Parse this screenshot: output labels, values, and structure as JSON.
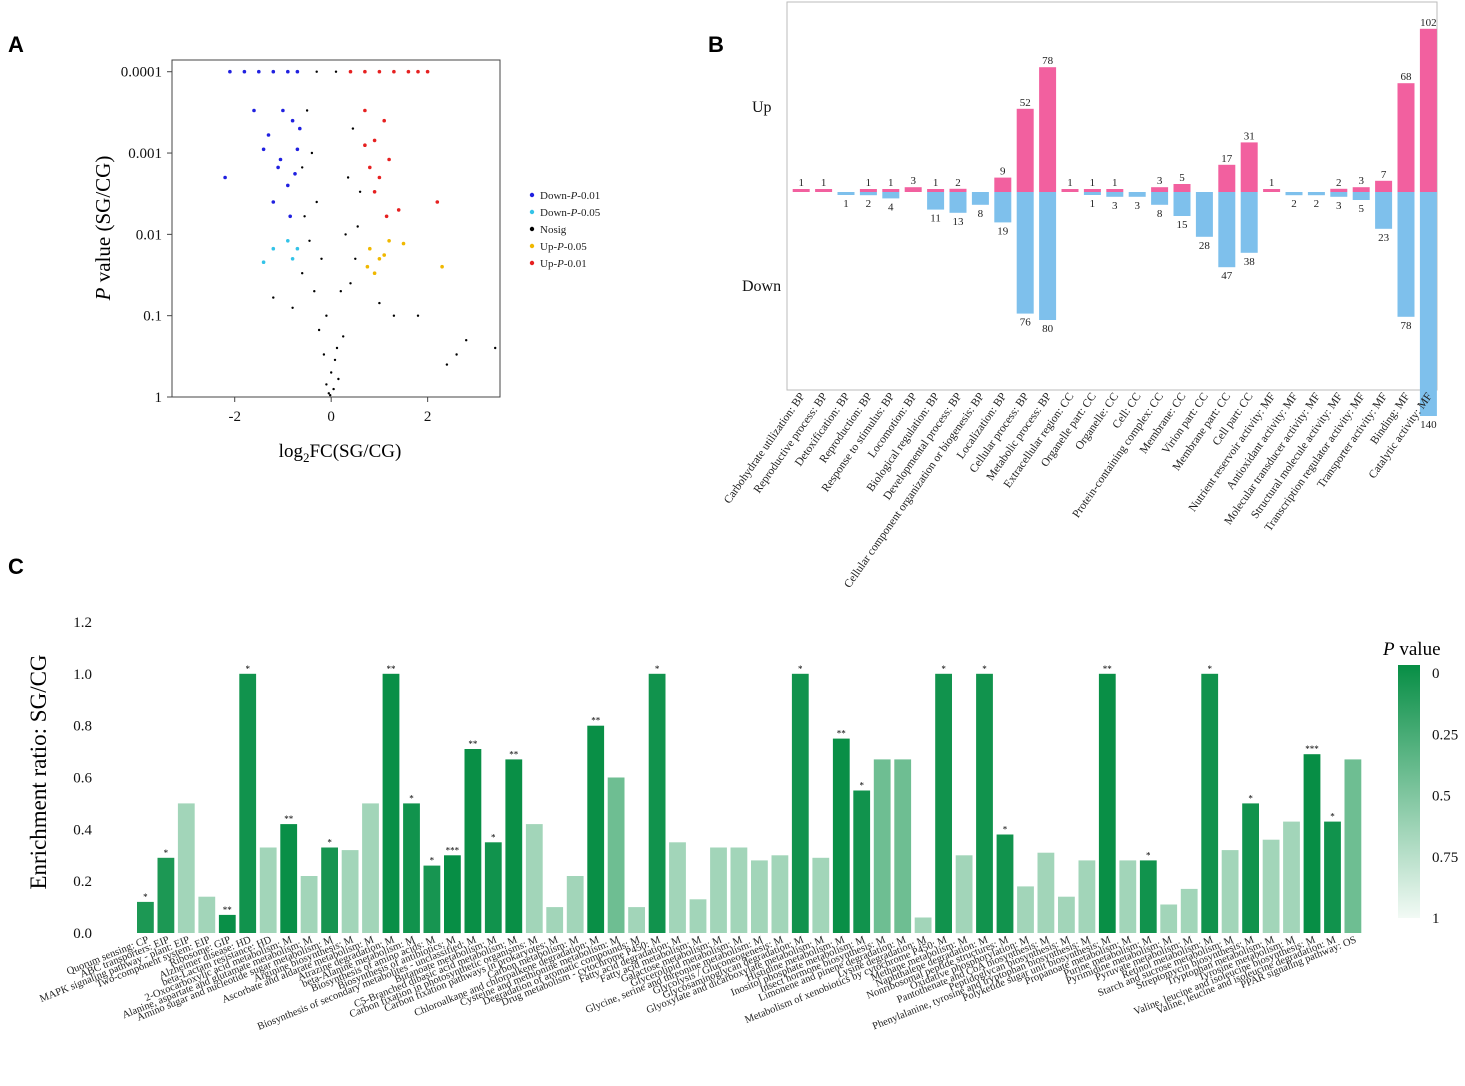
{
  "panels": {
    "a": "A",
    "b": "B",
    "c": "C"
  },
  "chart_data": [
    {
      "panel": "A",
      "type": "scatter",
      "title": "",
      "xlabel_base": "log",
      "xlabel_sub": "2",
      "xlabel_rest": "FC(SG/CG)",
      "ylabel_italic": "P",
      "ylabel_rest": " value (SG/CG)",
      "x_ticks": [
        "-2",
        "0",
        "2"
      ],
      "x_tick_values": [
        -2,
        0,
        2
      ],
      "xlim": [
        -3.3,
        3.5
      ],
      "y_ticks": [
        "0.0001",
        "0.001",
        "0.01",
        "0.1",
        "1"
      ],
      "y_tick_values": [
        0.0001,
        0.001,
        0.01,
        0.1,
        1
      ],
      "ylim_log": [
        9e-05,
        1
      ],
      "legend": [
        {
          "base": "Down-",
          "ital": "P",
          "rest": "-0.01",
          "color": "#2020e0"
        },
        {
          "base": "Down-",
          "ital": "P",
          "rest": "-0.05",
          "color": "#33c3e8"
        },
        {
          "base": "Nosig",
          "ital": "",
          "rest": "",
          "color": "#000000"
        },
        {
          "base": "Up-",
          "ital": "P",
          "rest": "-0.05",
          "color": "#f0b800"
        },
        {
          "base": "Up-",
          "ital": "P",
          "rest": "-0.01",
          "color": "#e62020"
        }
      ],
      "series": [
        {
          "name": "Down-P-0.01",
          "color": "#2020e0",
          "points": [
            [
              -2.1,
              0.0001
            ],
            [
              -1.8,
              0.0001
            ],
            [
              -1.5,
              0.0001
            ],
            [
              -1.2,
              0.0001
            ],
            [
              -0.9,
              0.0001
            ],
            [
              -0.7,
              0.0001
            ],
            [
              -2.2,
              0.002
            ],
            [
              -1.6,
              0.0003
            ],
            [
              -1.3,
              0.0006
            ],
            [
              -1.0,
              0.0003
            ],
            [
              -0.8,
              0.0004
            ],
            [
              -0.7,
              0.0009
            ],
            [
              -1.1,
              0.0015
            ],
            [
              -0.9,
              0.0025
            ],
            [
              -0.75,
              0.0018
            ],
            [
              -1.4,
              0.0009
            ],
            [
              -1.2,
              0.004
            ],
            [
              -0.85,
              0.006
            ],
            [
              -1.05,
              0.0012
            ],
            [
              -0.65,
              0.0005
            ]
          ]
        },
        {
          "name": "Down-P-0.05",
          "color": "#33c3e8",
          "points": [
            [
              -1.4,
              0.022
            ],
            [
              -1.2,
              0.015
            ],
            [
              -0.9,
              0.012
            ],
            [
              -0.8,
              0.02
            ],
            [
              -0.7,
              0.015
            ]
          ]
        },
        {
          "name": "Nosig",
          "color": "#000000",
          "points": [
            [
              -0.3,
              0.0001
            ],
            [
              0.1,
              0.0001
            ],
            [
              -0.5,
              0.0003
            ],
            [
              -0.4,
              0.001
            ],
            [
              -0.3,
              0.004
            ],
            [
              -0.2,
              0.02
            ],
            [
              -0.1,
              0.1
            ],
            [
              0.0,
              0.5
            ],
            [
              0.05,
              0.8
            ],
            [
              -0.05,
              0.9
            ],
            [
              0.2,
              0.05
            ],
            [
              0.3,
              0.01
            ],
            [
              0.35,
              0.002
            ],
            [
              0.45,
              0.0005
            ],
            [
              -0.6,
              0.03
            ],
            [
              -0.8,
              0.08
            ],
            [
              -1.2,
              0.06
            ],
            [
              1.0,
              0.07
            ],
            [
              1.3,
              0.1
            ],
            [
              1.8,
              0.1
            ],
            [
              2.4,
              0.4
            ],
            [
              2.8,
              0.2
            ],
            [
              3.4,
              0.25
            ],
            [
              2.6,
              0.3
            ],
            [
              -0.15,
              0.3
            ],
            [
              0.12,
              0.25
            ],
            [
              -0.25,
              0.15
            ],
            [
              0.25,
              0.18
            ],
            [
              -0.35,
              0.05
            ],
            [
              0.4,
              0.04
            ],
            [
              -0.45,
              0.012
            ],
            [
              0.5,
              0.02
            ],
            [
              -0.55,
              0.006
            ],
            [
              0.55,
              0.008
            ],
            [
              0.6,
              0.003
            ],
            [
              -0.6,
              0.0015
            ],
            [
              0.15,
              0.6
            ],
            [
              -0.1,
              0.7
            ],
            [
              0.08,
              0.35
            ],
            [
              -0.02,
              0.95
            ]
          ]
        },
        {
          "name": "Up-P-0.05",
          "color": "#f0b800",
          "points": [
            [
              0.8,
              0.015
            ],
            [
              1.0,
              0.02
            ],
            [
              1.2,
              0.012
            ],
            [
              0.9,
              0.03
            ],
            [
              1.5,
              0.013
            ],
            [
              2.3,
              0.025
            ],
            [
              0.75,
              0.025
            ],
            [
              1.1,
              0.018
            ]
          ]
        },
        {
          "name": "Up-P-0.01",
          "color": "#e62020",
          "points": [
            [
              0.4,
              0.0001
            ],
            [
              0.7,
              0.0001
            ],
            [
              1.0,
              0.0001
            ],
            [
              1.3,
              0.0001
            ],
            [
              1.6,
              0.0001
            ],
            [
              1.8,
              0.0001
            ],
            [
              2.0,
              0.0001
            ],
            [
              0.7,
              0.0003
            ],
            [
              0.9,
              0.0007
            ],
            [
              1.1,
              0.0004
            ],
            [
              0.8,
              0.0015
            ],
            [
              1.0,
              0.002
            ],
            [
              1.2,
              0.0012
            ],
            [
              0.9,
              0.003
            ],
            [
              1.4,
              0.005
            ],
            [
              2.2,
              0.004
            ],
            [
              0.7,
              0.0008
            ],
            [
              1.15,
              0.006
            ]
          ]
        }
      ]
    },
    {
      "panel": "B",
      "type": "bar",
      "title": "",
      "ylabel_up": "Up",
      "ylabel_down": "Down",
      "categories": [
        "Carbohydrate utilization: BP",
        "Reproductive process: BP",
        "Detoxification: BP",
        "Reproduction: BP",
        "Response to stimulus: BP",
        "Locomotion: BP",
        "Biological regulation: BP",
        "Developmental process: BP",
        "Cellular component organization or biogenesis: BP",
        "Localization: BP",
        "Cellular process: BP",
        "Metabolic process: BP",
        "Extracellular region: CC",
        "Organelle part: CC",
        "Organelle: CC",
        "Cell: CC",
        "Protein-containing complex: CC",
        "Membrane: CC",
        "Virion part: CC",
        "Membrane part: CC",
        "Cell part: CC",
        "Nutrient reservoir activity: MF",
        "Antioxidant activity: MF",
        "Molecular transducer activity: MF",
        "Structural molecule activity: MF",
        "Transcription regulator activity: MF",
        "Transporter activity: MF",
        "Binding: MF",
        "Catalytic activity: MF"
      ],
      "series": [
        {
          "name": "Up",
          "color": "#f2609f",
          "values": [
            1,
            1,
            0,
            1,
            1,
            3,
            1,
            2,
            0,
            9,
            52,
            78,
            1,
            1,
            1,
            0,
            3,
            5,
            0,
            17,
            31,
            1,
            0,
            0,
            2,
            3,
            7,
            68,
            102
          ]
        },
        {
          "name": "Down",
          "color": "#7ec0ec",
          "values": [
            0,
            0,
            1,
            2,
            4,
            0,
            11,
            13,
            8,
            19,
            76,
            80,
            0,
            1,
            3,
            3,
            8,
            15,
            28,
            47,
            38,
            0,
            2,
            2,
            3,
            5,
            23,
            78,
            140
          ]
        }
      ]
    },
    {
      "panel": "C",
      "type": "bar",
      "title": "",
      "ylabel": "Enrichment ratio: SG/CG",
      "ylim": [
        0,
        1.2
      ],
      "y_ticks": [
        "0.0",
        "0.2",
        "0.4",
        "0.6",
        "0.8",
        "1.0",
        "1.2"
      ],
      "y_tick_values": [
        0,
        0.2,
        0.4,
        0.6,
        0.8,
        1.0,
        1.2
      ],
      "colorbar_title_italic": "P",
      "colorbar_title_rest": " value",
      "colorbar_ticks": [
        "0",
        "0.25",
        "0.5",
        "0.75",
        "1"
      ],
      "colorbar_values": [
        0,
        0.25,
        0.5,
        0.75,
        1
      ],
      "categories": [
        "Quorum sensing: CP",
        "ABC transporters: EIP",
        "MAPK signaling pathway - plant: EIP",
        "Two-component system: EIP",
        "Ribosome: GIP",
        "Alzheimer disease: HD",
        "beta-Lactam resistance: HD",
        "2-Oxocarboxylic acid metabolism: M",
        "Alanine, aspartate and glutamate metabolism: M",
        "Amino sugar and nucleotide sugar metabolism: M",
        "Arginine biosynthesis: M",
        "Ascorbate and aldarate metabolism: M",
        "Atrazine degradation: M",
        "beta-Alanine metabolism: M",
        "Biosynthesis of amino acids: M",
        "Biosynthesis of antibiotics: M",
        "Biosynthesis of secondary metabolites - unclassified: M",
        "Butanoate metabolism: M",
        "C5-Branched dibasic acid metabolism: M",
        "Carbon fixation in photosynthetic organisms: M",
        "Carbon fixation pathways in prokaryotes: M",
        "Carbon metabolism: M",
        "Chloroalkane and chloroalkene degradation: M",
        "Cysteine and methionine metabolism: M",
        "Degradation of aromatic compounds: M",
        "Drug metabolism - cytochrome P450: M",
        "Fatty acid degradation: M",
        "Fatty acid metabolism: M",
        "Galactose metabolism: M",
        "Glycerolipid metabolism: M",
        "Glycine, serine and threonine metabolism: M",
        "Glycolysis / Gluconeogenesis: M",
        "Glycosaminoglycan degradation: M",
        "Glyoxylate and dicarboxylate metabolism: M",
        "Histidine metabolism: M",
        "Inositol phosphate metabolism: M",
        "Insect hormone biosynthesis: M",
        "Limonene and pinene degradation: M",
        "Lysine degradation: M",
        "Metabolism of xenobiotics by cytochrome P450: M",
        "Methane metabolism: M",
        "Naphthalene degradation: M",
        "Nonribosomal peptide structures: M",
        "Oxidative phosphorylation: M",
        "Pantothenate and CoA biosynthesis: M",
        "Peptidoglycan biosynthesis: M",
        "Phenylalanine, tyrosine and tryptophan biosynthesis: M",
        "Polyketide sugar unit biosynthesis: M",
        "Propanoate metabolism: M",
        "Purine metabolism: M",
        "Pyrimidine metabolism: M",
        "Pyruvate metabolism: M",
        "Retinol metabolism: M",
        "Starch and sucrose metabolism: M",
        "Streptomycin biosynthesis: M",
        "Tryptophan metabolism: M",
        "Tyrosine metabolism: M",
        "Valine, leucine and isoleucine biosynthesis: M",
        "Valine, leucine and isoleucine degradation: M",
        "PPAR signaling pathway: OS"
      ],
      "values": [
        0.12,
        0.29,
        0.5,
        0.14,
        0.07,
        1.0,
        0.33,
        0.42,
        0.22,
        0.33,
        0.32,
        0.5,
        1.0,
        0.5,
        0.26,
        0.3,
        0.71,
        0.35,
        0.67,
        0.42,
        0.1,
        0.22,
        0.8,
        0.6,
        0.1,
        1.0,
        0.35,
        0.13,
        0.33,
        0.33,
        0.28,
        0.3,
        1.0,
        0.29,
        0.75,
        0.55,
        0.67,
        0.67,
        0.06,
        1.0,
        0.3,
        1.0,
        0.38,
        0.18,
        0.31,
        0.14,
        0.28,
        1.0,
        0.28,
        0.28,
        0.11,
        0.17,
        1.0,
        0.32,
        0.5,
        0.36,
        0.43,
        0.69,
        0.43,
        0.67
      ],
      "p_values": [
        0.04,
        0.04,
        0.3,
        0.3,
        0.004,
        0.02,
        0.3,
        0.004,
        0.3,
        0.03,
        0.3,
        0.3,
        0.004,
        0.02,
        0.03,
        0.0008,
        0.003,
        0.02,
        0.003,
        0.3,
        0.3,
        0.3,
        0.003,
        0.2,
        0.3,
        0.02,
        0.3,
        0.3,
        0.3,
        0.3,
        0.3,
        0.3,
        0.02,
        0.3,
        0.003,
        0.02,
        0.2,
        0.2,
        0.3,
        0.02,
        0.3,
        0.02,
        0.02,
        0.3,
        0.3,
        0.3,
        0.3,
        0.003,
        0.3,
        0.02,
        0.3,
        0.3,
        0.02,
        0.3,
        0.02,
        0.3,
        0.3,
        0.0008,
        0.02,
        0.2
      ],
      "significance": [
        "*",
        "*",
        "",
        "",
        "**",
        "*",
        "",
        "**",
        "",
        "*",
        "",
        "",
        "**",
        "*",
        "*",
        "***",
        "**",
        "*",
        "**",
        "",
        "",
        "",
        "**",
        "",
        "",
        "*",
        "",
        "",
        "",
        "",
        "",
        "",
        "*",
        "",
        "**",
        "*",
        "",
        "",
        "",
        "*",
        "",
        "*",
        "*",
        "",
        "",
        "",
        "",
        "**",
        "",
        "*",
        "",
        "",
        "*",
        "",
        "*",
        "",
        "",
        "***",
        "*",
        ""
      ]
    }
  ]
}
